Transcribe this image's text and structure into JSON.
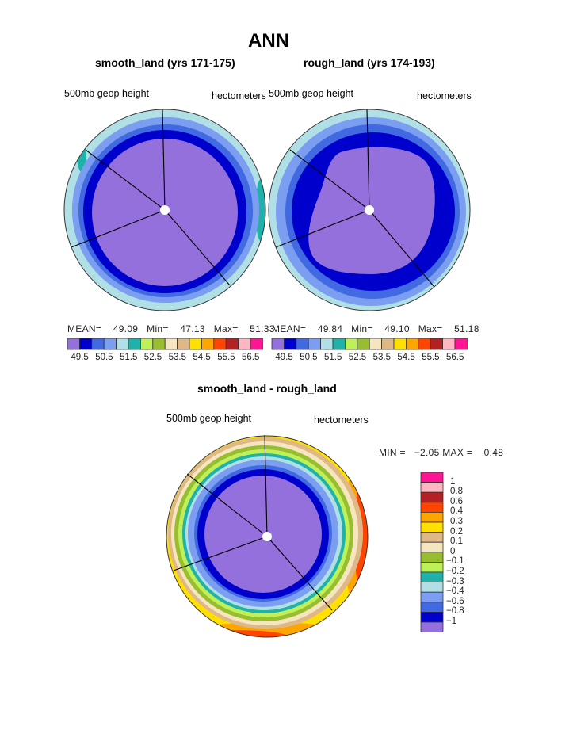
{
  "title": "ANN",
  "palette": [
    "#9370DB",
    "#0000CD",
    "#4169E1",
    "#7B9EF0",
    "#B0E0E6",
    "#20B2AA",
    "#BEF05A",
    "#98BE30",
    "#F5E6C0",
    "#DEB887",
    "#FFE000",
    "#FFA500",
    "#FF4500",
    "#B22222",
    "#FFB6C1",
    "#FF1493"
  ],
  "chart_data": [
    {
      "type": "heatmap",
      "projection": "polar",
      "title": "smooth_land (yrs 171-175)",
      "left_label": "500mb geop height",
      "right_label": "hectometers",
      "stats": {
        "mean_label": "MEAN=",
        "mean": "49.09",
        "min_label": "Min=",
        "min": "47.13",
        "max_label": "Max=",
        "max": "51.33"
      },
      "levels": [
        49.5,
        50,
        50.5,
        51,
        51.5,
        52,
        52.5,
        53,
        53.5,
        54,
        54.5,
        55,
        55.5,
        56,
        56.5
      ],
      "tick_labels": [
        "49.5",
        "50.5",
        "51.5",
        "52.5",
        "53.5",
        "54.5",
        "55.5",
        "56.5"
      ]
    },
    {
      "type": "heatmap",
      "projection": "polar",
      "title": "rough_land (yrs 174-193)",
      "left_label": "500mb geop height",
      "right_label": "hectometers",
      "stats": {
        "mean_label": "MEAN=",
        "mean": "49.84",
        "min_label": "Min=",
        "min": "49.10",
        "max_label": "Max=",
        "max": "51.18"
      },
      "levels": [
        49.5,
        50,
        50.5,
        51,
        51.5,
        52,
        52.5,
        53,
        53.5,
        54,
        54.5,
        55,
        55.5,
        56,
        56.5
      ],
      "tick_labels": [
        "49.5",
        "50.5",
        "51.5",
        "52.5",
        "53.5",
        "54.5",
        "55.5",
        "56.5"
      ]
    },
    {
      "type": "heatmap",
      "projection": "polar",
      "title": "smooth_land - rough_land",
      "left_label": "500mb geop height",
      "right_label": "hectometers",
      "stats": {
        "min_label": "MIN =",
        "min": "−2.05",
        "max_label": "MAX =",
        "max": "0.48"
      },
      "levels": [
        -1,
        -0.8,
        -0.6,
        -0.4,
        -0.3,
        -0.2,
        -0.1,
        0,
        0.1,
        0.2,
        0.3,
        0.4,
        0.6,
        0.8,
        1
      ],
      "tick_labels": [
        "1",
        "0.8",
        "0.6",
        "0.4",
        "0.3",
        "0.2",
        "0.1",
        "0",
        "−0.1",
        "−0.2",
        "−0.3",
        "−0.4",
        "−0.6",
        "−0.8",
        "−1"
      ]
    }
  ]
}
